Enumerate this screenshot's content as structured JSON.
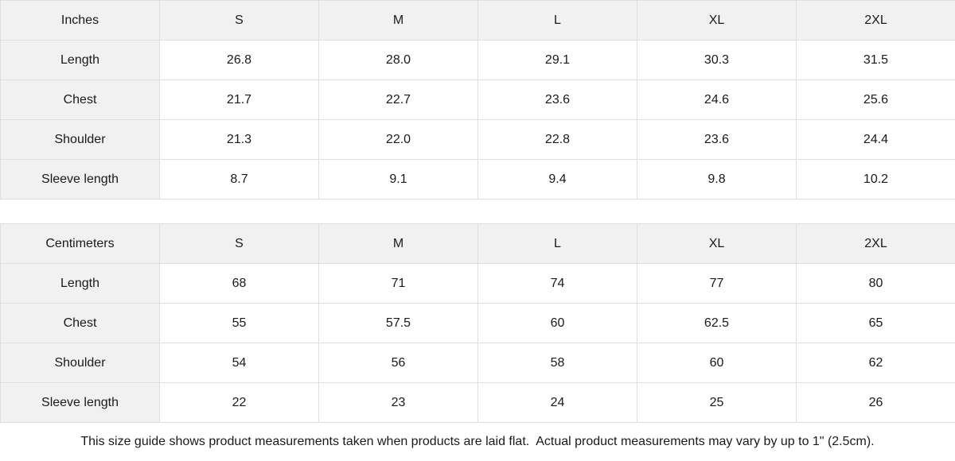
{
  "page": {
    "background": "#ffffff",
    "header_cell_bg": "#f1f1f1",
    "border_color": "#dedede",
    "text_color": "#1a1a1a"
  },
  "chart_data": [
    {
      "type": "table",
      "title": "Inches",
      "columns": [
        "S",
        "M",
        "L",
        "XL",
        "2XL"
      ],
      "rows": [
        {
          "label": "Length",
          "values": [
            "26.8",
            "28.0",
            "29.1",
            "30.3",
            "31.5"
          ]
        },
        {
          "label": "Chest",
          "values": [
            "21.7",
            "22.7",
            "23.6",
            "24.6",
            "25.6"
          ]
        },
        {
          "label": "Shoulder",
          "values": [
            "21.3",
            "22.0",
            "22.8",
            "23.6",
            "24.4"
          ]
        },
        {
          "label": "Sleeve length",
          "values": [
            "8.7",
            "9.1",
            "9.4",
            "9.8",
            "10.2"
          ]
        }
      ]
    },
    {
      "type": "table",
      "title": "Centimeters",
      "columns": [
        "S",
        "M",
        "L",
        "XL",
        "2XL"
      ],
      "rows": [
        {
          "label": "Length",
          "values": [
            "68",
            "71",
            "74",
            "77",
            "80"
          ]
        },
        {
          "label": "Chest",
          "values": [
            "55",
            "57.5",
            "60",
            "62.5",
            "65"
          ]
        },
        {
          "label": "Shoulder",
          "values": [
            "54",
            "56",
            "58",
            "60",
            "62"
          ]
        },
        {
          "label": "Sleeve length",
          "values": [
            "22",
            "23",
            "24",
            "25",
            "26"
          ]
        }
      ]
    }
  ],
  "footer": {
    "note": "This size guide shows product measurements taken when products are laid flat.  Actual product measurements may vary by up to 1\" (2.5cm)."
  }
}
